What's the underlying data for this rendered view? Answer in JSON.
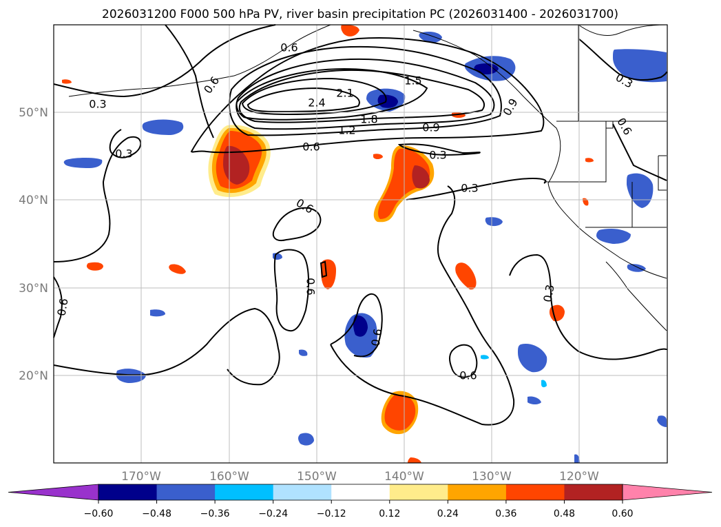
{
  "title": "2026031200 F000 500 hPa PV, river basin precipitation PC (2026031400 - 2026031700)",
  "lon_labels": [
    "170°W",
    "160°W",
    "150°W",
    "140°W",
    "130°W",
    "120°W"
  ],
  "lat_labels": [
    "50°N",
    "40°N",
    "30°N",
    "20°N"
  ],
  "colorbar": {
    "ticks": [
      "−0.60",
      "−0.48",
      "−0.36",
      "−0.24",
      "−0.12",
      "0.12",
      "0.24",
      "0.36",
      "0.48",
      "0.60"
    ],
    "colors": [
      "#9932cc",
      "#00008b",
      "#3a5fcd",
      "#00bfff",
      "#b0e2ff",
      "#ffffff",
      "#ffec8b",
      "#ffa500",
      "#ff4500",
      "#b22222",
      "#ff82ab"
    ]
  },
  "contour_labels": [
    "0.3",
    "0.6",
    "0.9",
    "1.2",
    "1.5",
    "1.8",
    "2.1",
    "2.4"
  ],
  "contour_label_positions": [
    {
      "text": "0.3"
    },
    {
      "text": "0.6"
    },
    {
      "text": "2.4"
    },
    {
      "text": "2.1"
    },
    {
      "text": "1.5"
    },
    {
      "text": "1.8"
    },
    {
      "text": "1.2"
    },
    {
      "text": "0.9"
    },
    {
      "text": "0.6"
    },
    {
      "text": "0.3"
    },
    {
      "text": "0.3"
    },
    {
      "text": "0.3"
    },
    {
      "text": "0.6"
    },
    {
      "text": "0.6"
    },
    {
      "text": "0.6"
    },
    {
      "text": "0.6"
    },
    {
      "text": "0.3"
    },
    {
      "text": "0.6"
    },
    {
      "text": "0.6"
    },
    {
      "text": "0.3"
    },
    {
      "text": "0.6"
    },
    {
      "text": "0.9"
    }
  ]
}
